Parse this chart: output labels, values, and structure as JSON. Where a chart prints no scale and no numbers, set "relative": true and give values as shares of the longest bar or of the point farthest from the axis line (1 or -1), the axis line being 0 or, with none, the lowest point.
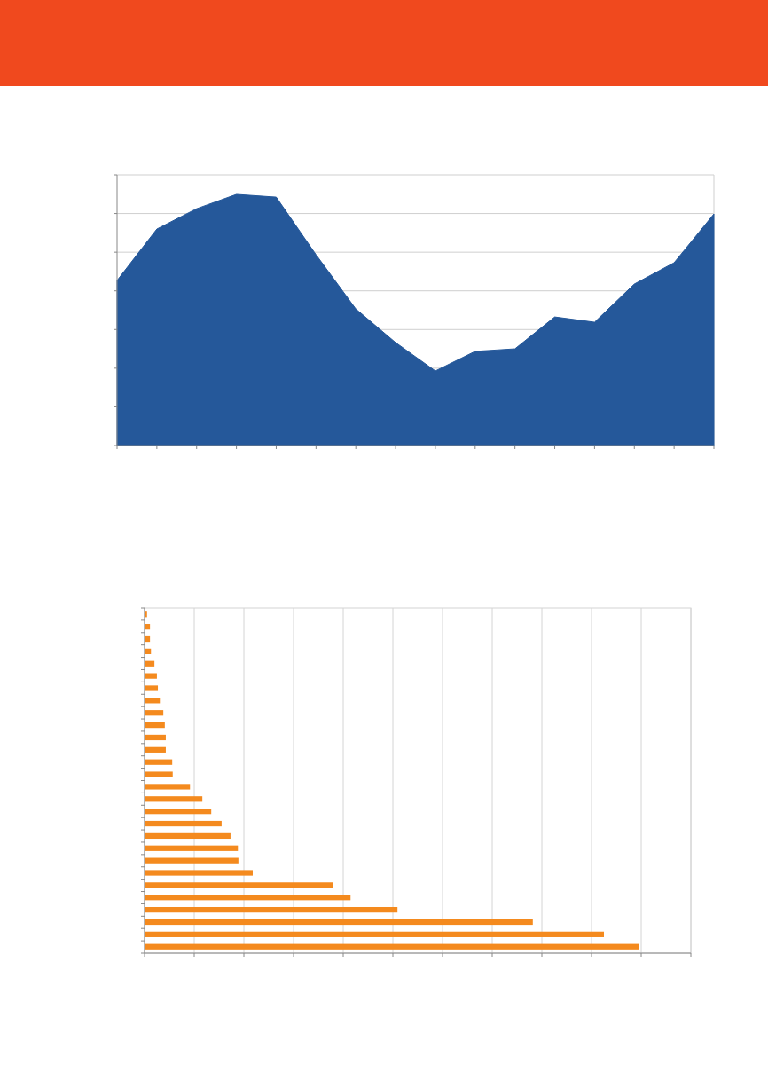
{
  "chart_data": [
    {
      "type": "area",
      "relative": true,
      "grid": true,
      "color": "#25589a",
      "categories": [
        null,
        null,
        null,
        null,
        null,
        null,
        null,
        null,
        null,
        null,
        null,
        null,
        null,
        null,
        null,
        null
      ],
      "values": [
        0.657,
        0.862,
        0.943,
        1,
        0.989,
        0.76,
        0.544,
        0.41,
        0.297,
        0.375,
        0.385,
        0.512,
        0.491,
        0.643,
        0.728,
        0.922
      ]
    },
    {
      "type": "bar",
      "orientation": "horizontal",
      "relative": true,
      "grid": true,
      "color": "#f48a1e",
      "categories": [
        null,
        null,
        null,
        null,
        null,
        null,
        null,
        null,
        null,
        null,
        null,
        null,
        null,
        null,
        null,
        null,
        null,
        null,
        null,
        null,
        null,
        null,
        null,
        null,
        null,
        null,
        null,
        null
      ],
      "values": [
        0.005,
        0.011,
        0.011,
        0.013,
        0.02,
        0.025,
        0.027,
        0.031,
        0.038,
        0.041,
        0.043,
        0.043,
        0.056,
        0.057,
        0.092,
        0.117,
        0.135,
        0.156,
        0.174,
        0.189,
        0.19,
        0.219,
        0.382,
        0.417,
        0.512,
        0.786,
        0.93,
        1
      ]
    }
  ]
}
